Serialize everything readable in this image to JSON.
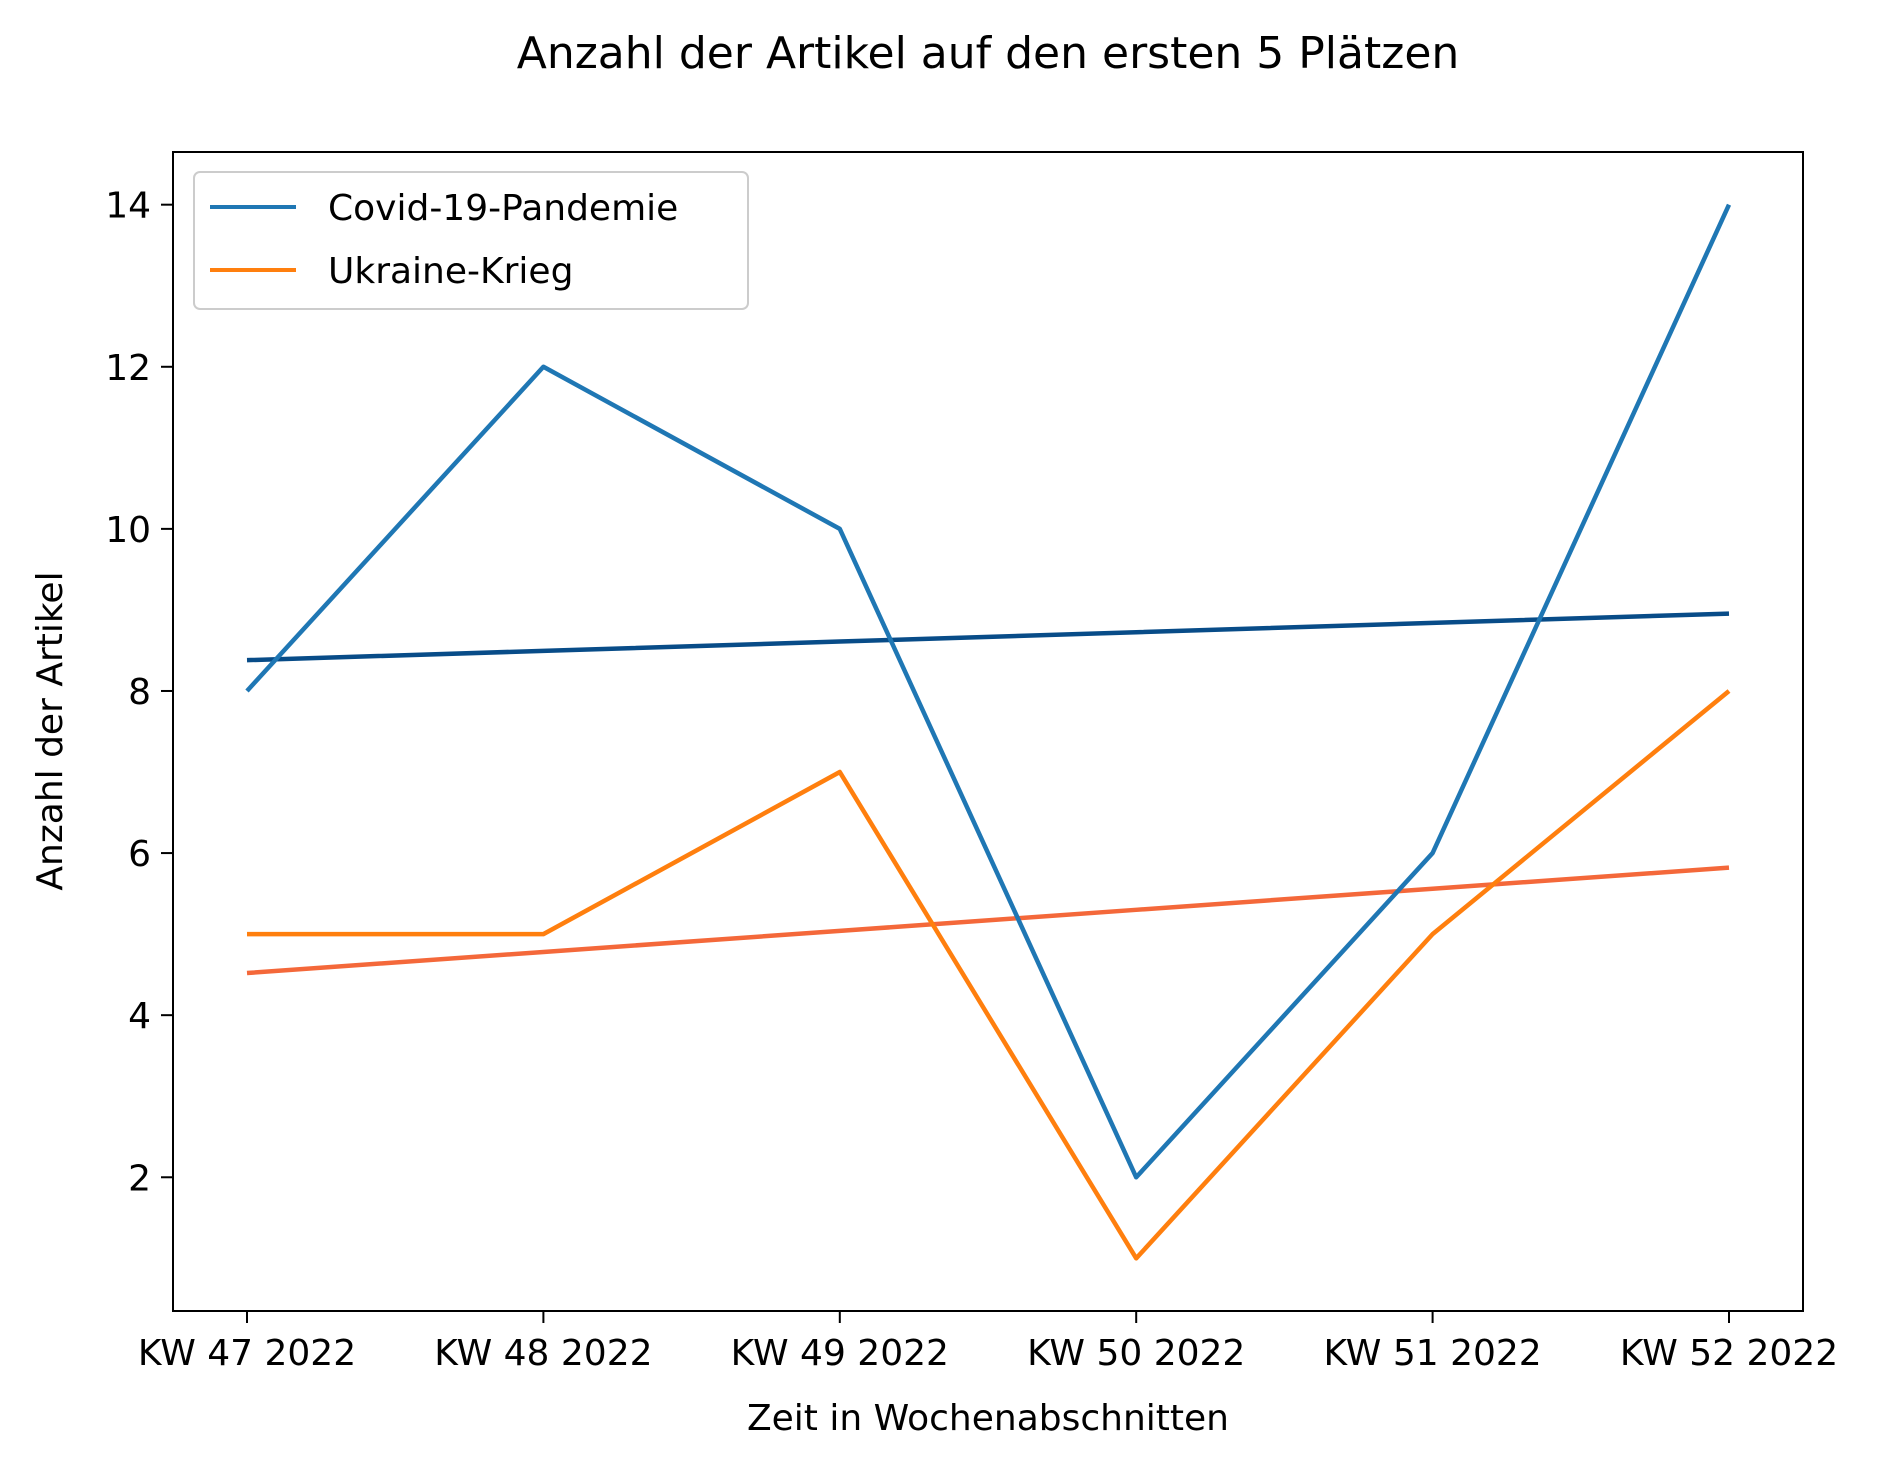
{
  "chart_data": {
    "type": "line",
    "title": "Anzahl der Artikel auf den ersten 5 Plätzen",
    "xlabel": "Zeit in Wochenabschnitten",
    "ylabel": "Anzahl der Artikel",
    "categories": [
      "KW 47 2022",
      "KW 48 2022",
      "KW 49 2022",
      "KW 50 2022",
      "KW 51 2022",
      "KW 52 2022"
    ],
    "yticks": [
      2,
      4,
      6,
      8,
      10,
      12,
      14
    ],
    "ylim": [
      0.35,
      14.65
    ],
    "grid": false,
    "legend_position": "top-left",
    "series": [
      {
        "name": "Covid-19-Pandemie",
        "color": "#1f77b4",
        "values": [
          8,
          12,
          10,
          2,
          6,
          14
        ]
      },
      {
        "name": "Ukraine-Krieg",
        "color": "#ff7f0e",
        "values": [
          5,
          5,
          7,
          1,
          5,
          8
        ]
      }
    ],
    "trendlines": [
      {
        "color": "#084c88",
        "values": [
          8.38,
          8.495,
          8.61,
          8.725,
          8.84,
          8.955
        ]
      },
      {
        "color": "#f4683a",
        "values": [
          4.52,
          4.78,
          5.04,
          5.3,
          5.56,
          5.82
        ]
      }
    ]
  }
}
